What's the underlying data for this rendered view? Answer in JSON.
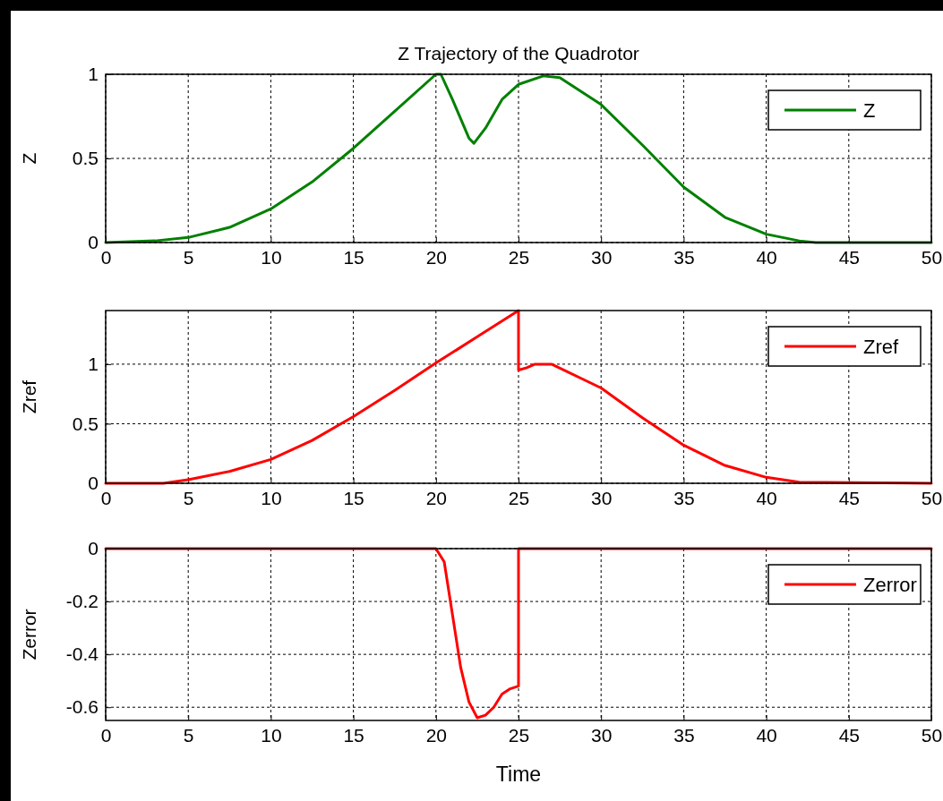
{
  "chart_data": [
    {
      "type": "line",
      "title": "Z Trajectory of the Quadrotor",
      "ylabel": "Z",
      "xlim": [
        0,
        50
      ],
      "xticks": [
        0,
        5,
        10,
        15,
        20,
        25,
        30,
        35,
        40,
        45,
        50
      ],
      "ylim": [
        0,
        1
      ],
      "yticks": [
        0,
        0.5,
        1
      ],
      "grid": true,
      "legend": "top right",
      "series": [
        {
          "name": "Z",
          "color": "#008000",
          "x": [
            0,
            3,
            5,
            7.5,
            10,
            12.5,
            15,
            17.5,
            20,
            20.3,
            21,
            22,
            22.3,
            23,
            24,
            25,
            26.5,
            27.5,
            30,
            32.5,
            35,
            37.5,
            40,
            42,
            43,
            50
          ],
          "values": [
            0,
            0.01,
            0.03,
            0.09,
            0.2,
            0.36,
            0.56,
            0.78,
            1.0,
            1.0,
            0.85,
            0.62,
            0.59,
            0.68,
            0.85,
            0.94,
            0.99,
            0.98,
            0.82,
            0.58,
            0.33,
            0.15,
            0.05,
            0.01,
            0,
            0
          ]
        }
      ]
    },
    {
      "type": "line",
      "ylabel": "Zref",
      "xlim": [
        0,
        50
      ],
      "xticks": [
        0,
        5,
        10,
        15,
        20,
        25,
        30,
        35,
        40,
        45,
        50
      ],
      "ylim": [
        0,
        1.45
      ],
      "yticks": [
        0,
        0.5,
        1
      ],
      "grid": true,
      "legend": "top right",
      "series": [
        {
          "name": "Zref",
          "color": "#ff0000",
          "x": [
            0,
            3.5,
            5,
            7.5,
            10,
            12.5,
            15,
            17.5,
            20,
            22.5,
            25,
            25,
            25.5,
            26,
            27,
            30,
            32.5,
            35,
            37.5,
            40,
            42,
            50
          ],
          "values": [
            0,
            0,
            0.03,
            0.1,
            0.2,
            0.36,
            0.56,
            0.78,
            1.01,
            1.23,
            1.45,
            0.95,
            0.97,
            1.0,
            1.0,
            0.8,
            0.55,
            0.32,
            0.15,
            0.05,
            0.01,
            0
          ]
        }
      ]
    },
    {
      "type": "line",
      "xlabel": "Time",
      "ylabel": "Zerror",
      "xlim": [
        0,
        50
      ],
      "xticks": [
        0,
        5,
        10,
        15,
        20,
        25,
        30,
        35,
        40,
        45,
        50
      ],
      "ylim": [
        -0.65,
        0
      ],
      "yticks": [
        -0.6,
        -0.4,
        -0.2,
        0
      ],
      "grid": true,
      "legend": "top right",
      "series": [
        {
          "name": "Zerror",
          "color": "#ff0000",
          "x": [
            0,
            20,
            20.5,
            21,
            21.5,
            22,
            22.5,
            23,
            23.5,
            24,
            24.5,
            25,
            25,
            50
          ],
          "values": [
            0,
            0,
            -0.05,
            -0.25,
            -0.45,
            -0.58,
            -0.64,
            -0.63,
            -0.6,
            -0.55,
            -0.53,
            -0.52,
            0,
            0
          ]
        }
      ]
    }
  ]
}
